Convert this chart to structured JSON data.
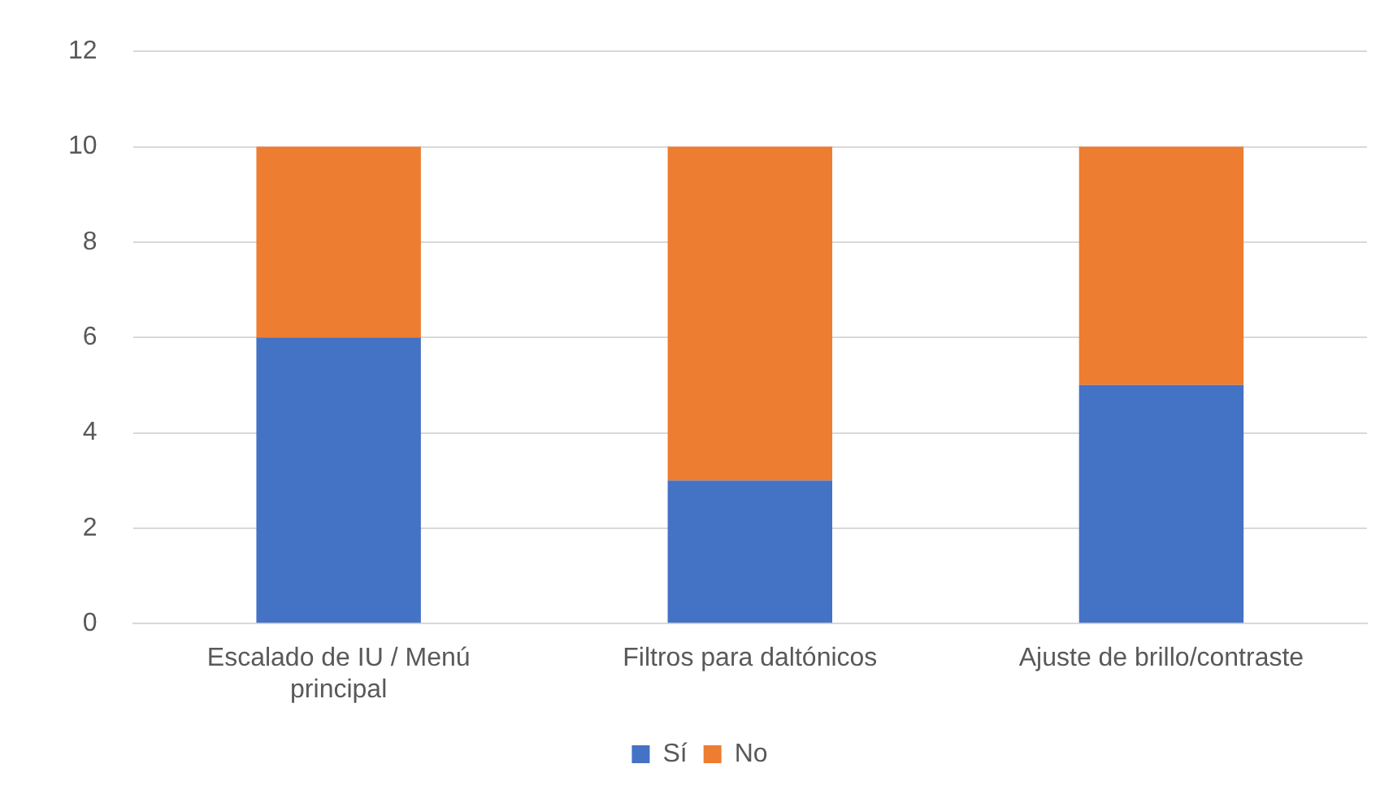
{
  "chart_data": {
    "type": "bar",
    "stacked": true,
    "categories": [
      "Escalado de IU / Menú principal",
      "Filtros para daltónicos",
      "Ajuste de brillo/contraste"
    ],
    "series": [
      {
        "name": "Sí",
        "color": "#4472c4",
        "values": [
          6,
          3,
          5
        ]
      },
      {
        "name": "No",
        "color": "#ed7d31",
        "values": [
          4,
          7,
          5
        ]
      }
    ],
    "ylim": [
      0,
      12
    ],
    "yticks": [
      0,
      2,
      4,
      6,
      8,
      10,
      12
    ],
    "grid": "y",
    "legend": "bottom"
  }
}
